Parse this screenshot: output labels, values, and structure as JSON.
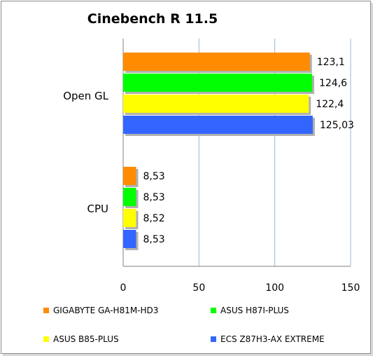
{
  "chart_data": {
    "type": "bar",
    "orientation": "horizontal",
    "title": "Cinebench R 11.5",
    "categories": [
      "Open GL",
      "CPU"
    ],
    "series": [
      {
        "name": "GIGABYTE GA-H81M-HD3",
        "color": "#FF8C00",
        "values": [
          123.1,
          8.53
        ],
        "labels": [
          "123,1",
          "8,53"
        ]
      },
      {
        "name": "ASUS H87I-PLUS",
        "color": "#00FF00",
        "values": [
          124.6,
          8.53
        ],
        "labels": [
          "124,6",
          "8,53"
        ]
      },
      {
        "name": "ASUS B85-PLUS",
        "color": "#FFFF00",
        "values": [
          122.4,
          8.52
        ],
        "labels": [
          "122,4",
          "8,52"
        ]
      },
      {
        "name": "ECS Z87H3-AX EXTREME",
        "color": "#3366FF",
        "values": [
          125.03,
          8.53
        ],
        "labels": [
          "125,03",
          "8,53"
        ]
      }
    ],
    "xlim": [
      0,
      150
    ],
    "xticks": [
      "0",
      "50",
      "100",
      "150"
    ],
    "grid": true,
    "legend_position": "bottom"
  }
}
